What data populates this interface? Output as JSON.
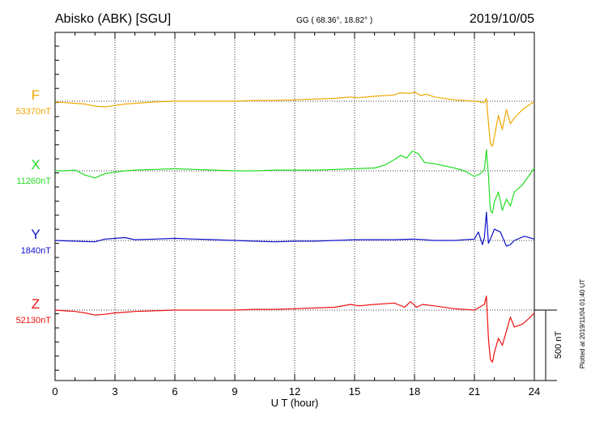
{
  "header": {
    "station": "Abisko (ABK)  [SGU]",
    "coords": "GG ( 68.36°,  18.82° )",
    "date": "2019/10/05"
  },
  "chart_data": {
    "type": "line",
    "xlabel": "U T (hour)",
    "xlim": [
      0,
      24
    ],
    "xticks": [
      "0",
      "3",
      "6",
      "9",
      "12",
      "15",
      "18",
      "21",
      "24"
    ],
    "scale_bar": "500 nT",
    "plotted_note": "Plotted at 2019/11/04 01:40 UT",
    "series": [
      {
        "name": "F",
        "baseline": "53370nT",
        "color": "#f0a800",
        "x": [
          0,
          0.5,
          1,
          1.5,
          2,
          2.5,
          3,
          3.5,
          4,
          5,
          6,
          7,
          8,
          9,
          10,
          11,
          12,
          13,
          14,
          14.8,
          15.2,
          16,
          17,
          17.3,
          17.8,
          18,
          18.3,
          18.6,
          19,
          20,
          21,
          21.5,
          21.6,
          21.7,
          21.8,
          21.9,
          22.0,
          22.2,
          22.4,
          22.6,
          22.8,
          23,
          23.4,
          23.8,
          24
        ],
        "values": [
          -5,
          -10,
          -15,
          -20,
          -35,
          -40,
          -30,
          -20,
          -15,
          -5,
          0,
          0,
          0,
          0,
          5,
          5,
          10,
          15,
          20,
          30,
          25,
          35,
          45,
          60,
          55,
          65,
          40,
          50,
          30,
          10,
          0,
          -10,
          20,
          -150,
          -300,
          -320,
          -250,
          -100,
          -200,
          -60,
          -160,
          -120,
          -60,
          -20,
          -5
        ]
      },
      {
        "name": "X",
        "baseline": "11260nT",
        "color": "#22dd22",
        "x": [
          0,
          0.5,
          1,
          1.5,
          2,
          2.5,
          3,
          3.5,
          4,
          5,
          6,
          7,
          8,
          9,
          10,
          11,
          12,
          13,
          14,
          15,
          16,
          16.5,
          17,
          17.3,
          17.6,
          17.9,
          18.2,
          18.5,
          19,
          20,
          20.5,
          21,
          21.3,
          21.5,
          21.6,
          21.7,
          21.8,
          21.9,
          22.0,
          22.2,
          22.4,
          22.6,
          22.8,
          23.0,
          23.4,
          23.8,
          24
        ],
        "values": [
          0,
          0,
          5,
          -30,
          -50,
          -20,
          -10,
          0,
          5,
          10,
          15,
          10,
          5,
          0,
          0,
          5,
          5,
          5,
          10,
          15,
          20,
          40,
          80,
          110,
          90,
          140,
          120,
          60,
          50,
          20,
          0,
          -40,
          -20,
          10,
          150,
          -30,
          -280,
          -300,
          -220,
          -150,
          -280,
          -200,
          -250,
          -150,
          -100,
          -20,
          20
        ]
      },
      {
        "name": "Y",
        "baseline": "1840nT",
        "color": "#1010cc",
        "x": [
          0,
          1,
          2,
          2.5,
          3,
          3.5,
          4,
          5,
          6,
          7,
          8,
          9,
          10,
          11,
          12,
          13,
          14,
          15,
          16,
          17,
          18,
          19,
          20,
          21,
          21.2,
          21.4,
          21.5,
          21.6,
          21.7,
          21.8,
          22.0,
          22.3,
          22.6,
          22.8,
          23.0,
          23.5,
          24
        ],
        "values": [
          0,
          -5,
          -10,
          10,
          15,
          20,
          5,
          10,
          15,
          10,
          5,
          0,
          -5,
          -10,
          -5,
          -5,
          0,
          5,
          5,
          5,
          10,
          0,
          0,
          10,
          60,
          -30,
          20,
          200,
          -20,
          10,
          80,
          60,
          -40,
          -30,
          0,
          30,
          10
        ]
      },
      {
        "name": "Z",
        "baseline": "52130nT",
        "color": "#ee1111",
        "x": [
          0,
          0.5,
          1,
          1.5,
          2,
          2.5,
          3,
          3.5,
          4,
          5,
          6,
          7,
          8,
          9,
          10,
          11,
          12,
          13,
          14,
          14.8,
          15.2,
          16,
          17,
          17.5,
          17.8,
          18.1,
          18.4,
          19,
          20,
          21,
          21.5,
          21.6,
          21.7,
          21.8,
          21.9,
          22.0,
          22.2,
          22.4,
          22.6,
          22.8,
          23,
          23.4,
          23.8,
          24
        ],
        "values": [
          0,
          -5,
          -10,
          -20,
          -35,
          -30,
          -20,
          -15,
          -10,
          -5,
          0,
          0,
          0,
          0,
          5,
          5,
          10,
          15,
          20,
          40,
          30,
          40,
          50,
          20,
          60,
          20,
          40,
          30,
          10,
          0,
          40,
          100,
          -200,
          -350,
          -370,
          -300,
          -200,
          -250,
          -150,
          -50,
          -120,
          -100,
          -50,
          -20
        ]
      }
    ]
  }
}
